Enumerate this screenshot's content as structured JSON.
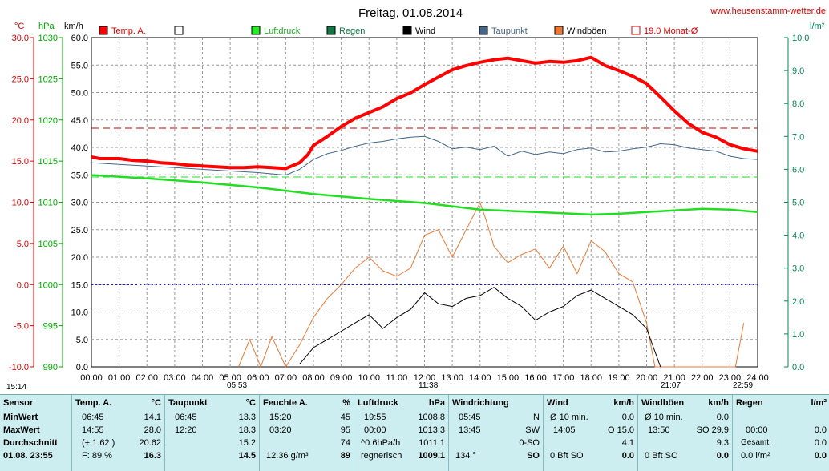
{
  "chart_data": {
    "type": "line",
    "title": "Freitag, 01.08.2014",
    "website": "www.heusenstamm-wetter.de",
    "axes": {
      "temp": {
        "unit": "°C",
        "ticks": [
          "30.0",
          "25.0",
          "20.0",
          "15.0",
          "10.0",
          "5.0",
          "0.0",
          "-5.0",
          "-10.0"
        ],
        "color": "#dd0000",
        "range": [
          -10,
          30
        ]
      },
      "press": {
        "unit": "hPa",
        "ticks": [
          "1030",
          "1025",
          "1020",
          "1015",
          "1010",
          "1005",
          "1000",
          "995",
          "990"
        ],
        "color": "#00aa00",
        "range": [
          990,
          1030
        ]
      },
      "wind": {
        "unit": "km/h",
        "ticks": [
          "60.0",
          "55.0",
          "50.0",
          "45.0",
          "40.0",
          "35.0",
          "30.0",
          "25.0",
          "20.0",
          "15.0",
          "10.0",
          "5.0",
          "0.0"
        ],
        "range": [
          0,
          60
        ]
      },
      "rain": {
        "unit": "l/m²",
        "ticks": [
          "10.0",
          "9.0",
          "8.0",
          "7.0",
          "6.0",
          "5.0",
          "4.0",
          "3.0",
          "2.0",
          "1.0",
          "0.0"
        ],
        "color": "#008855",
        "range": [
          0,
          10
        ]
      },
      "x_ticks": [
        "00:00",
        "01:00",
        "02:00",
        "03:00",
        "04:00",
        "05:00",
        "06:00",
        "07:00",
        "08:00",
        "09:00",
        "10:00",
        "11:00",
        "12:00",
        "13:00",
        "14:00",
        "15:00",
        "16:00",
        "17:00",
        "18:00",
        "19:00",
        "20:00",
        "21:00",
        "22:00",
        "23:00",
        "24:00"
      ]
    },
    "legend": [
      {
        "name": "Temp. A.",
        "color": "#ff0000",
        "type": "filled"
      },
      {
        "name": "",
        "color": "#ffffff",
        "type": "empty"
      },
      {
        "name": "Luftdruck",
        "color": "#22ee22",
        "type": "filled"
      },
      {
        "name": "Regen",
        "color": "#117744",
        "type": "filled"
      },
      {
        "name": "Wind",
        "color": "#000000",
        "type": "filled"
      },
      {
        "name": "Taupunkt",
        "color": "#446688",
        "type": "filled"
      },
      {
        "name": "Windböen",
        "color": "#ee7733",
        "type": "filled"
      },
      {
        "name": "19.0 Monat-Ø",
        "color": "#dd0000",
        "type": "empty"
      }
    ],
    "temperature": {
      "x": [
        0,
        0.3,
        1,
        1.5,
        2,
        2.5,
        3,
        3.5,
        4,
        4.5,
        5,
        5.5,
        6,
        6.5,
        7,
        7.5,
        7.8,
        8,
        8.5,
        9,
        9.5,
        10,
        10.5,
        11,
        11.5,
        12,
        12.5,
        13,
        13.5,
        14,
        14.5,
        15,
        15.5,
        16,
        16.5,
        17,
        17.5,
        18,
        18.5,
        19,
        19.5,
        20,
        20.5,
        21,
        21.5,
        22,
        22.5,
        23,
        23.5,
        24
      ],
      "y": [
        15.5,
        15.3,
        15.3,
        15.1,
        15.0,
        14.8,
        14.7,
        14.5,
        14.4,
        14.3,
        14.2,
        14.2,
        14.3,
        14.2,
        14.1,
        14.8,
        15.8,
        16.9,
        18.0,
        19.2,
        20.2,
        20.9,
        21.6,
        22.6,
        23.3,
        24.3,
        25.2,
        26.1,
        26.6,
        27.0,
        27.3,
        27.5,
        27.2,
        26.9,
        27.1,
        27.0,
        27.2,
        27.6,
        26.6,
        26.0,
        25.3,
        24.4,
        22.8,
        21.1,
        19.6,
        18.5,
        17.9,
        17.0,
        16.5,
        16.2
      ]
    },
    "dewpoint": {
      "x": [
        0,
        1,
        2,
        3,
        4,
        5,
        6,
        7,
        7.5,
        8,
        8.5,
        9,
        9.5,
        10,
        10.5,
        11,
        11.5,
        12,
        12.5,
        13,
        13.5,
        14,
        14.5,
        15,
        15.5,
        16,
        16.5,
        17,
        17.5,
        18,
        18.5,
        19,
        19.5,
        20,
        20.5,
        21,
        21.5,
        22,
        22.5,
        23,
        23.5,
        24
      ],
      "y": [
        14.8,
        14.6,
        14.4,
        14.2,
        14.0,
        13.8,
        13.6,
        13.3,
        14.0,
        15.2,
        15.9,
        16.3,
        16.8,
        17.2,
        17.4,
        17.7,
        17.9,
        18.0,
        17.4,
        16.5,
        16.7,
        16.4,
        16.8,
        15.6,
        16.2,
        15.8,
        16.1,
        15.9,
        16.4,
        16.6,
        16.1,
        16.2,
        16.5,
        16.7,
        17.1,
        17.0,
        16.6,
        16.4,
        16.2,
        15.6,
        15.3,
        15.2
      ]
    },
    "pressure": {
      "x": [
        0,
        2,
        4,
        6,
        8,
        10,
        12,
        14,
        16,
        18,
        19,
        20,
        21,
        22,
        23,
        24
      ],
      "y": [
        1013.3,
        1012.9,
        1012.4,
        1011.8,
        1011.0,
        1010.4,
        1009.9,
        1009.1,
        1008.8,
        1008.5,
        1008.6,
        1008.8,
        1009.0,
        1009.2,
        1009.1,
        1008.8
      ]
    },
    "wind_mean": {
      "x": [
        7.5,
        8,
        8.5,
        9,
        9.5,
        10,
        10.5,
        11,
        11.5,
        12,
        12.5,
        13,
        13.5,
        14,
        14.5,
        15,
        15.5,
        16,
        16.5,
        17,
        17.5,
        18,
        18.5,
        19,
        19.5,
        20,
        20.5
      ],
      "y": [
        0.5,
        3.5,
        5,
        6.5,
        8,
        9.5,
        7,
        9,
        10.5,
        13.5,
        11.5,
        11,
        12.5,
        13,
        14.5,
        12.5,
        11,
        8.5,
        10,
        11,
        13,
        14,
        12.5,
        11,
        9.5,
        7,
        0
      ]
    },
    "gusts": {
      "x": [
        5.3,
        5.7,
        6.1,
        6.5,
        7.0,
        7.5,
        8.0,
        8.5,
        9.0,
        9.5,
        10.0,
        10.5,
        11.0,
        11.5,
        12.0,
        12.5,
        13.0,
        13.5,
        14.0,
        14.2,
        14.5,
        15.0,
        15.5,
        16.0,
        16.5,
        17.0,
        17.5,
        18.0,
        18.5,
        19.0,
        19.5,
        20.0,
        20.3,
        23.2,
        23.5
      ],
      "y": [
        0,
        5,
        0,
        5.5,
        0,
        4,
        9,
        12.5,
        15,
        18,
        20,
        17.5,
        16.5,
        18,
        24,
        25,
        20,
        25,
        29.9,
        27,
        22,
        19,
        20.5,
        21.5,
        18,
        22,
        17,
        23,
        21,
        17,
        15.5,
        8,
        0,
        0,
        8
      ]
    },
    "dashed_lines": {
      "temp_month_avg": 19.0,
      "wind_level": 15.0,
      "green_level": 34.6
    }
  },
  "time_markers": {
    "sunrise_left": "15:14",
    "sunrise": "05:53",
    "moon": "11:38",
    "sunset": "21:07",
    "moonset": "22:59"
  },
  "table": {
    "labels": {
      "title": "Sensor",
      "min": "MinWert",
      "max": "MaxWert",
      "avg": "Durchschnitt",
      "date": "01.08. 23:55"
    },
    "temp": {
      "head": "Temp. A.",
      "unit": "°C",
      "min_t": "06:45",
      "min": "14.1",
      "max_t": "14:55",
      "max": "28.0",
      "avg_t": "(+ 1.62 )",
      "avg": "20.62",
      "cur_t": "F: 89 %",
      "cur": "16.3"
    },
    "dew": {
      "head": "Taupunkt",
      "unit": "°C",
      "min_t": "06:45",
      "min": "13.3",
      "max_t": "12:20",
      "max": "18.3",
      "avg": "15.2",
      "cur": "14.5"
    },
    "hum": {
      "head": "Feuchte A.",
      "unit": "%",
      "min_t": "15:20",
      "min": "45",
      "max_t": "03:20",
      "max": "95",
      "avg": "74",
      "cur_t": "12.36 g/m³",
      "cur": "89"
    },
    "press": {
      "head": "Luftdruck",
      "unit": "hPa",
      "min_t": "19:55",
      "min": "1008.8",
      "max_t": "00:00",
      "max": "1013.3",
      "avg_t": "^0.6hPa/h",
      "avg": "1011.1",
      "cur_t": "regnerisch",
      "cur": "1009.1"
    },
    "dir": {
      "head": "Windrichtung",
      "min_t": "05:45",
      "min": "N",
      "max_t": "13:45",
      "max": "SW",
      "avg": "0-SO",
      "cur_t": "134 °",
      "cur": "SO"
    },
    "wind": {
      "head": "Wind",
      "unit": "km/h",
      "min_t": "Ø 10 min.",
      "min": "0.0",
      "max_t": "14:05",
      "max": "O 15.0",
      "avg": "4.1",
      "cur_t": "0 Bft SO",
      "cur": "0.0"
    },
    "gust": {
      "head": "Windböen",
      "unit": "km/h",
      "min_t": "Ø 10 min.",
      "min": "0.0",
      "max_t": "13:50",
      "max": "SO 29.9",
      "avg": "9.3",
      "cur_t": "0 Bft SO",
      "cur": "0.0"
    },
    "rain": {
      "head": "Regen",
      "unit": "l/m²",
      "max_t": "00:00",
      "max": "0.0",
      "avg_t": "Gesamt:",
      "avg": "0.0",
      "cur_t": "0.0 l/m²",
      "cur": "0.0"
    }
  }
}
